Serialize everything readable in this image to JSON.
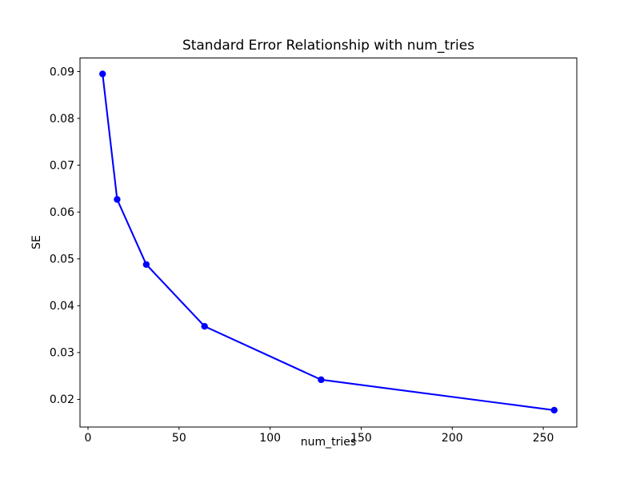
{
  "figure": {
    "background": "#ffffff"
  },
  "chart_data": {
    "type": "line",
    "title": "Standard Error Relationship with num_tries",
    "xlabel": "num_tries",
    "ylabel": "SE",
    "x": [
      8,
      16,
      32,
      64,
      128,
      256
    ],
    "y": [
      0.0895,
      0.0627,
      0.0488,
      0.0356,
      0.0242,
      0.0177
    ],
    "xlim": [
      -4.4,
      268.4
    ],
    "ylim": [
      0.0141,
      0.0929
    ],
    "xticks": [
      0,
      50,
      100,
      150,
      200,
      250
    ],
    "yticks": [
      0.02,
      0.03,
      0.04,
      0.05,
      0.06,
      0.07,
      0.08,
      0.09
    ],
    "ytick_decimals": 2,
    "grid": false,
    "line_color": "#0000ff",
    "marker_color": "#0000ff",
    "marker": "o",
    "axis_color": "#000000",
    "legend": "none"
  }
}
